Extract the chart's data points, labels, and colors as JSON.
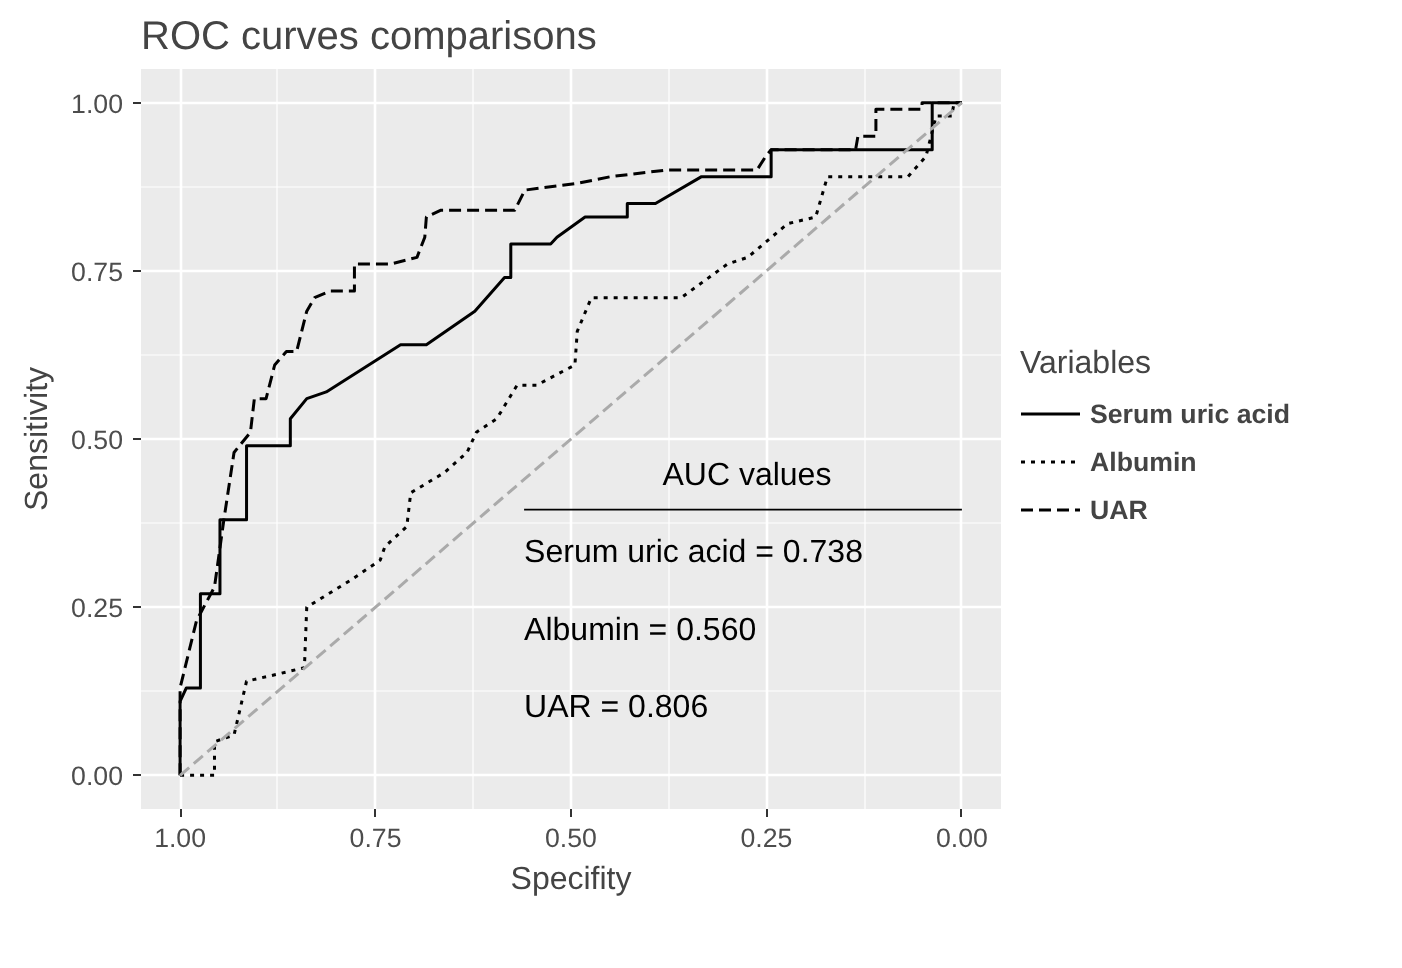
{
  "chart_data": {
    "type": "line",
    "title": "ROC curves comparisons",
    "xlabel": "Specifity",
    "ylabel": "Sensitivity",
    "legend_title": "Variables",
    "xlim": [
      1.05,
      -0.05
    ],
    "ylim": [
      -0.05,
      1.05
    ],
    "xticks": [
      {
        "value": 1,
        "label": "1.00"
      },
      {
        "value": 0.75,
        "label": "0.75"
      },
      {
        "value": 0.5,
        "label": "0.50"
      },
      {
        "value": 0.25,
        "label": "0.25"
      },
      {
        "value": 0,
        "label": "0.00"
      }
    ],
    "yticks": [
      {
        "value": 0,
        "label": "0.00"
      },
      {
        "value": 0.25,
        "label": "0.25"
      },
      {
        "value": 0.5,
        "label": "0.50"
      },
      {
        "value": 0.75,
        "label": "0.75"
      },
      {
        "value": 1,
        "label": "1.00"
      }
    ],
    "grid": true,
    "legend": "right",
    "series": [
      {
        "name": "Serum uric acid",
        "color": "#000000",
        "line_style": "solid",
        "x": [
          1,
          1,
          0.992,
          0.974,
          0.974,
          0.949,
          0.949,
          0.915,
          0.915,
          0.859,
          0.859,
          0.838,
          0.813,
          0.718,
          0.685,
          0.623,
          0.585,
          0.577,
          0.577,
          0.526,
          0.518,
          0.482,
          0.428,
          0.428,
          0.392,
          0.333,
          0.244,
          0.244,
          0.038,
          0.038,
          0
        ],
        "values": [
          0,
          0.11,
          0.13,
          0.13,
          0.27,
          0.27,
          0.38,
          0.38,
          0.49,
          0.49,
          0.53,
          0.56,
          0.57,
          0.64,
          0.64,
          0.69,
          0.74,
          0.74,
          0.79,
          0.79,
          0.8,
          0.83,
          0.83,
          0.85,
          0.85,
          0.89,
          0.89,
          0.93,
          0.93,
          1,
          1
        ]
      },
      {
        "name": "Albumin",
        "color": "#000000",
        "line_style": "dotted",
        "x": [
          1,
          0.956,
          0.956,
          0.931,
          0.915,
          0.877,
          0.841,
          0.838,
          0.782,
          0.744,
          0.738,
          0.71,
          0.705,
          0.662,
          0.633,
          0.621,
          0.595,
          0.569,
          0.544,
          0.495,
          0.492,
          0.474,
          0.359,
          0.3,
          0.274,
          0.223,
          0.187,
          0.172,
          0.069,
          0.046,
          0.033,
          0.013,
          0.01,
          0
        ],
        "values": [
          0,
          0,
          0.05,
          0.06,
          0.14,
          0.15,
          0.16,
          0.25,
          0.29,
          0.32,
          0.34,
          0.37,
          0.42,
          0.45,
          0.48,
          0.51,
          0.53,
          0.58,
          0.58,
          0.61,
          0.66,
          0.71,
          0.71,
          0.76,
          0.77,
          0.82,
          0.83,
          0.89,
          0.89,
          0.92,
          0.98,
          0.98,
          1,
          1
        ]
      },
      {
        "name": "UAR",
        "color": "#000000",
        "line_style": "dashed",
        "x": [
          1,
          1,
          0.979,
          0.956,
          0.944,
          0.931,
          0.91,
          0.905,
          0.89,
          0.879,
          0.864,
          0.851,
          0.838,
          0.828,
          0.808,
          0.777,
          0.777,
          0.731,
          0.697,
          0.687,
          0.685,
          0.667,
          0.572,
          0.559,
          0.492,
          0.449,
          0.377,
          0.262,
          0.251,
          0.244,
          0.136,
          0.133,
          0.11,
          0.11,
          0.051,
          0.051,
          0
        ],
        "values": [
          0,
          0.13,
          0.23,
          0.28,
          0.38,
          0.48,
          0.51,
          0.56,
          0.56,
          0.61,
          0.63,
          0.63,
          0.69,
          0.71,
          0.72,
          0.72,
          0.76,
          0.76,
          0.77,
          0.8,
          0.83,
          0.84,
          0.84,
          0.87,
          0.88,
          0.89,
          0.9,
          0.9,
          0.92,
          0.93,
          0.93,
          0.95,
          0.95,
          0.99,
          0.99,
          1,
          1
        ]
      },
      {
        "color": "#aaaaaa",
        "line_style": "dashed",
        "x": [
          1,
          0
        ],
        "values": [
          0,
          1
        ]
      }
    ],
    "annotations": [
      "AUC values",
      "Serum uric acid = 0.738",
      "Albumin = 0.560",
      "UAR = 0.806"
    ]
  }
}
